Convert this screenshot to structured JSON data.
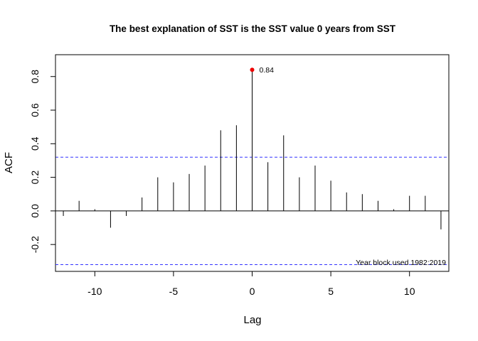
{
  "chart_data": {
    "type": "bar",
    "title": "The best explanation of SST is the SST value 0 years from SST",
    "xlabel": "Lag",
    "ylabel": "ACF",
    "xlim": [
      -12.5,
      12.5
    ],
    "ylim": [
      -0.36,
      0.93
    ],
    "x_ticks": [
      -10,
      -5,
      0,
      5,
      10
    ],
    "x_tick_labels": [
      "-10",
      "-5",
      "0",
      "5",
      "10"
    ],
    "y_ticks": [
      -0.2,
      0.0,
      0.2,
      0.4,
      0.6,
      0.8
    ],
    "y_tick_labels": [
      "-0.2",
      "0.0",
      "0.2",
      "0.4",
      "0.6",
      "0.8"
    ],
    "lags": [
      -12,
      -11,
      -10,
      -9,
      -8,
      -7,
      -6,
      -5,
      -4,
      -3,
      -2,
      -1,
      0,
      1,
      2,
      3,
      4,
      5,
      6,
      7,
      8,
      9,
      10,
      11,
      12
    ],
    "values": [
      -0.03,
      0.06,
      0.01,
      -0.1,
      -0.03,
      0.08,
      0.2,
      0.17,
      0.22,
      0.27,
      0.48,
      0.51,
      0.84,
      0.29,
      0.45,
      0.2,
      0.27,
      0.18,
      0.11,
      0.1,
      0.06,
      0.01,
      0.09,
      0.09,
      -0.11
    ],
    "confidence_upper": 0.32,
    "confidence_lower": -0.32,
    "confidence_color": "#3333ff",
    "highlight": {
      "lag": 0,
      "value": 0.84,
      "label": "0.84",
      "color": "#ee0000"
    },
    "annotation": "Year block used 1982:2019",
    "grid": false
  }
}
